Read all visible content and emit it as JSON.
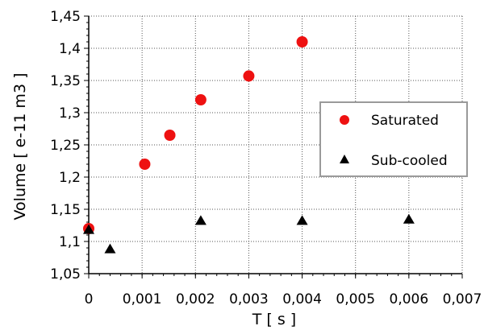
{
  "chart_data": {
    "type": "scatter",
    "xlabel": "T [ s ]",
    "ylabel": "Volume [ e-11 m3 ]",
    "xlim": [
      0,
      0.007
    ],
    "ylim": [
      1.05,
      1.45
    ],
    "x_ticks": [
      0,
      0.001,
      0.002,
      0.003,
      0.004,
      0.005,
      0.006,
      0.007
    ],
    "x_tick_labels": [
      "0",
      "0,001",
      "0,002",
      "0,003",
      "0,004",
      "0,005",
      "0,006",
      "0,007"
    ],
    "y_ticks": [
      1.05,
      1.1,
      1.15,
      1.2,
      1.25,
      1.3,
      1.35,
      1.4,
      1.45
    ],
    "y_tick_labels": [
      "1,05",
      "1,1",
      "1,15",
      "1,2",
      "1,25",
      "1,3",
      "1,35",
      "1,4",
      "1,45"
    ],
    "grid": true,
    "legend_position": "right",
    "series": [
      {
        "name": "Saturated",
        "marker": "circle",
        "color": "#ee1111",
        "points": [
          {
            "x": 0.0,
            "y": 1.12
          },
          {
            "x": 0.00105,
            "y": 1.22
          },
          {
            "x": 0.00152,
            "y": 1.265
          },
          {
            "x": 0.0021,
            "y": 1.32
          },
          {
            "x": 0.003,
            "y": 1.357
          },
          {
            "x": 0.004,
            "y": 1.41
          }
        ]
      },
      {
        "name": "Sub-cooled",
        "marker": "triangle",
        "color": "#000000",
        "points": [
          {
            "x": 0.0,
            "y": 1.118
          },
          {
            "x": 0.0004,
            "y": 1.088
          },
          {
            "x": 0.0021,
            "y": 1.132
          },
          {
            "x": 0.004,
            "y": 1.132
          },
          {
            "x": 0.006,
            "y": 1.134
          }
        ]
      }
    ]
  }
}
